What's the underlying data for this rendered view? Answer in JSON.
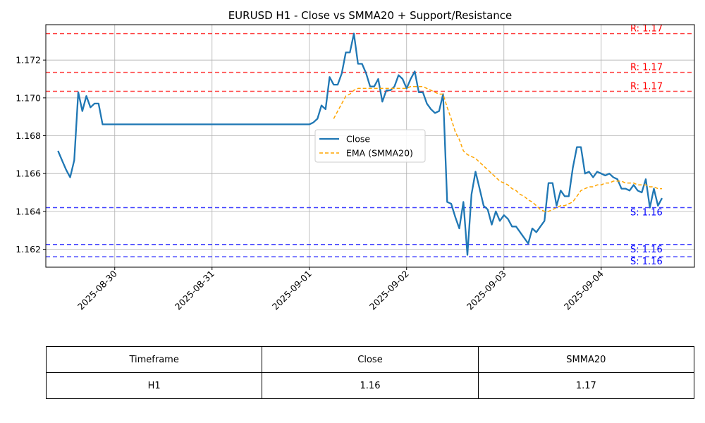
{
  "chart_data": {
    "type": "line",
    "title": "EURUSD H1 - Close vs SMMA20 + Support/Resistance",
    "xlabel": "",
    "ylabel": "",
    "ylim": [
      1.16105,
      1.17387
    ],
    "xlim": [
      "2025-08-29 07:00",
      "2025-09-04 23:00"
    ],
    "grid": true,
    "legend_position": "center",
    "y_ticks": [
      1.162,
      1.164,
      1.166,
      1.168,
      1.17,
      1.172
    ],
    "y_tick_labels": [
      "1.162",
      "1.164",
      "1.166",
      "1.168",
      "1.170",
      "1.172"
    ],
    "x_ticks": [
      "2025-08-30",
      "2025-08-31",
      "2025-09-01",
      "2025-09-02",
      "2025-09-03",
      "2025-09-04"
    ],
    "series": [
      {
        "name": "Close",
        "color": "#1f77b4",
        "style": "solid",
        "points": [
          [
            "2025-08-29 10:00",
            1.1672
          ],
          [
            "2025-08-29 11:00",
            1.1667
          ],
          [
            "2025-08-29 12:00",
            1.1662
          ],
          [
            "2025-08-29 13:00",
            1.1658
          ],
          [
            "2025-08-29 14:00",
            1.1667
          ],
          [
            "2025-08-29 15:00",
            1.1703
          ],
          [
            "2025-08-29 16:00",
            1.1693
          ],
          [
            "2025-08-29 17:00",
            1.1701
          ],
          [
            "2025-08-29 18:00",
            1.1695
          ],
          [
            "2025-08-29 19:00",
            1.1697
          ],
          [
            "2025-08-29 20:00",
            1.1697
          ],
          [
            "2025-08-29 21:00",
            1.1686
          ],
          [
            "2025-09-01 00:00",
            1.1686
          ],
          [
            "2025-09-01 01:00",
            1.1687
          ],
          [
            "2025-09-01 02:00",
            1.1689
          ],
          [
            "2025-09-01 03:00",
            1.1696
          ],
          [
            "2025-09-01 04:00",
            1.1694
          ],
          [
            "2025-09-01 05:00",
            1.1711
          ],
          [
            "2025-09-01 06:00",
            1.1707
          ],
          [
            "2025-09-01 07:00",
            1.1707
          ],
          [
            "2025-09-01 08:00",
            1.1713
          ],
          [
            "2025-09-01 09:00",
            1.1724
          ],
          [
            "2025-09-01 10:00",
            1.1724
          ],
          [
            "2025-09-01 11:00",
            1.1734
          ],
          [
            "2025-09-01 12:00",
            1.1718
          ],
          [
            "2025-09-01 13:00",
            1.1718
          ],
          [
            "2025-09-01 14:00",
            1.1713
          ],
          [
            "2025-09-01 15:00",
            1.1706
          ],
          [
            "2025-09-01 16:00",
            1.1706
          ],
          [
            "2025-09-01 17:00",
            1.171
          ],
          [
            "2025-09-01 18:00",
            1.1698
          ],
          [
            "2025-09-01 19:00",
            1.1704
          ],
          [
            "2025-09-01 20:00",
            1.1704
          ],
          [
            "2025-09-01 21:00",
            1.1706
          ],
          [
            "2025-09-01 22:00",
            1.1712
          ],
          [
            "2025-09-01 23:00",
            1.171
          ],
          [
            "2025-09-02 00:00",
            1.1705
          ],
          [
            "2025-09-02 01:00",
            1.171
          ],
          [
            "2025-09-02 02:00",
            1.1714
          ],
          [
            "2025-09-02 03:00",
            1.1703
          ],
          [
            "2025-09-02 04:00",
            1.1703
          ],
          [
            "2025-09-02 05:00",
            1.1697
          ],
          [
            "2025-09-02 06:00",
            1.1694
          ],
          [
            "2025-09-02 07:00",
            1.1692
          ],
          [
            "2025-09-02 08:00",
            1.1693
          ],
          [
            "2025-09-02 09:00",
            1.1702
          ],
          [
            "2025-09-02 10:00",
            1.1645
          ],
          [
            "2025-09-02 11:00",
            1.1644
          ],
          [
            "2025-09-02 12:00",
            1.1637
          ],
          [
            "2025-09-02 13:00",
            1.1631
          ],
          [
            "2025-09-02 14:00",
            1.1645
          ],
          [
            "2025-09-02 15:00",
            1.1617
          ],
          [
            "2025-09-02 16:00",
            1.1649
          ],
          [
            "2025-09-02 17:00",
            1.1661
          ],
          [
            "2025-09-02 18:00",
            1.1652
          ],
          [
            "2025-09-02 19:00",
            1.1643
          ],
          [
            "2025-09-02 20:00",
            1.1641
          ],
          [
            "2025-09-02 21:00",
            1.1633
          ],
          [
            "2025-09-02 22:00",
            1.164
          ],
          [
            "2025-09-02 23:00",
            1.1635
          ],
          [
            "2025-09-03 00:00",
            1.1638
          ],
          [
            "2025-09-03 01:00",
            1.1636
          ],
          [
            "2025-09-03 02:00",
            1.1632
          ],
          [
            "2025-09-03 03:00",
            1.1632
          ],
          [
            "2025-09-03 04:00",
            1.1629
          ],
          [
            "2025-09-03 05:00",
            1.1626
          ],
          [
            "2025-09-03 06:00",
            1.1623
          ],
          [
            "2025-09-03 07:00",
            1.1631
          ],
          [
            "2025-09-03 08:00",
            1.1629
          ],
          [
            "2025-09-03 09:00",
            1.1632
          ],
          [
            "2025-09-03 10:00",
            1.1635
          ],
          [
            "2025-09-03 11:00",
            1.1655
          ],
          [
            "2025-09-03 12:00",
            1.1655
          ],
          [
            "2025-09-03 13:00",
            1.1643
          ],
          [
            "2025-09-03 14:00",
            1.1651
          ],
          [
            "2025-09-03 15:00",
            1.1648
          ],
          [
            "2025-09-03 16:00",
            1.1648
          ],
          [
            "2025-09-03 17:00",
            1.1663
          ],
          [
            "2025-09-03 18:00",
            1.1674
          ],
          [
            "2025-09-03 19:00",
            1.1674
          ],
          [
            "2025-09-03 20:00",
            1.166
          ],
          [
            "2025-09-03 21:00",
            1.1661
          ],
          [
            "2025-09-03 22:00",
            1.1658
          ],
          [
            "2025-09-03 23:00",
            1.1661
          ],
          [
            "2025-09-04 00:00",
            1.166
          ],
          [
            "2025-09-04 01:00",
            1.1659
          ],
          [
            "2025-09-04 02:00",
            1.166
          ],
          [
            "2025-09-04 03:00",
            1.1658
          ],
          [
            "2025-09-04 04:00",
            1.1657
          ],
          [
            "2025-09-04 05:00",
            1.1652
          ],
          [
            "2025-09-04 06:00",
            1.1652
          ],
          [
            "2025-09-04 07:00",
            1.1651
          ],
          [
            "2025-09-04 08:00",
            1.1654
          ],
          [
            "2025-09-04 09:00",
            1.1651
          ],
          [
            "2025-09-04 10:00",
            1.165
          ],
          [
            "2025-09-04 11:00",
            1.1657
          ],
          [
            "2025-09-04 12:00",
            1.1642
          ],
          [
            "2025-09-04 13:00",
            1.1652
          ],
          [
            "2025-09-04 14:00",
            1.1643
          ],
          [
            "2025-09-04 15:00",
            1.1647
          ]
        ]
      },
      {
        "name": "EMA (SMMA20)",
        "color": "#ffa500",
        "style": "dashed",
        "points": [
          [
            "2025-09-01 06:00",
            1.1689
          ],
          [
            "2025-09-01 07:00",
            1.1693
          ],
          [
            "2025-09-01 08:00",
            1.1697
          ],
          [
            "2025-09-01 09:00",
            1.1701
          ],
          [
            "2025-09-01 10:00",
            1.1702
          ],
          [
            "2025-09-01 11:00",
            1.1704
          ],
          [
            "2025-09-01 12:00",
            1.1705
          ],
          [
            "2025-09-01 13:00",
            1.1705
          ],
          [
            "2025-09-01 14:00",
            1.1705
          ],
          [
            "2025-09-01 15:00",
            1.1705
          ],
          [
            "2025-09-01 16:00",
            1.1705
          ],
          [
            "2025-09-01 17:00",
            1.1705
          ],
          [
            "2025-09-01 18:00",
            1.1705
          ],
          [
            "2025-09-01 19:00",
            1.1705
          ],
          [
            "2025-09-01 20:00",
            1.1705
          ],
          [
            "2025-09-01 21:00",
            1.1705
          ],
          [
            "2025-09-01 22:00",
            1.1705
          ],
          [
            "2025-09-01 23:00",
            1.1705
          ],
          [
            "2025-09-02 00:00",
            1.1705
          ],
          [
            "2025-09-02 01:00",
            1.1706
          ],
          [
            "2025-09-02 02:00",
            1.1706
          ],
          [
            "2025-09-02 03:00",
            1.1706
          ],
          [
            "2025-09-02 04:00",
            1.1706
          ],
          [
            "2025-09-02 05:00",
            1.1705
          ],
          [
            "2025-09-02 06:00",
            1.1704
          ],
          [
            "2025-09-02 07:00",
            1.1703
          ],
          [
            "2025-09-02 08:00",
            1.1702
          ],
          [
            "2025-09-02 09:00",
            1.1702
          ],
          [
            "2025-09-02 10:00",
            1.1695
          ],
          [
            "2025-09-02 11:00",
            1.1689
          ],
          [
            "2025-09-02 12:00",
            1.1682
          ],
          [
            "2025-09-02 13:00",
            1.1678
          ],
          [
            "2025-09-02 14:00",
            1.1672
          ],
          [
            "2025-09-02 15:00",
            1.167
          ],
          [
            "2025-09-02 16:00",
            1.1669
          ],
          [
            "2025-09-02 17:00",
            1.1668
          ],
          [
            "2025-09-02 18:00",
            1.1666
          ],
          [
            "2025-09-02 19:00",
            1.1664
          ],
          [
            "2025-09-02 20:00",
            1.1662
          ],
          [
            "2025-09-02 21:00",
            1.166
          ],
          [
            "2025-09-02 22:00",
            1.1658
          ],
          [
            "2025-09-02 23:00",
            1.1656
          ],
          [
            "2025-09-03 00:00",
            1.1655
          ],
          [
            "2025-09-03 01:00",
            1.1654
          ],
          [
            "2025-09-03 02:00",
            1.1652
          ],
          [
            "2025-09-03 03:00",
            1.1651
          ],
          [
            "2025-09-03 04:00",
            1.1649
          ],
          [
            "2025-09-03 05:00",
            1.1648
          ],
          [
            "2025-09-03 06:00",
            1.1646
          ],
          [
            "2025-09-03 07:00",
            1.1645
          ],
          [
            "2025-09-03 08:00",
            1.1643
          ],
          [
            "2025-09-03 09:00",
            1.1641
          ],
          [
            "2025-09-03 10:00",
            1.164
          ],
          [
            "2025-09-03 11:00",
            1.164
          ],
          [
            "2025-09-03 12:00",
            1.1641
          ],
          [
            "2025-09-03 13:00",
            1.1642
          ],
          [
            "2025-09-03 14:00",
            1.1643
          ],
          [
            "2025-09-03 15:00",
            1.1643
          ],
          [
            "2025-09-03 16:00",
            1.1644
          ],
          [
            "2025-09-03 17:00",
            1.1645
          ],
          [
            "2025-09-03 18:00",
            1.1648
          ],
          [
            "2025-09-03 19:00",
            1.1651
          ],
          [
            "2025-09-03 20:00",
            1.1652
          ],
          [
            "2025-09-03 21:00",
            1.1653
          ],
          [
            "2025-09-03 22:00",
            1.1653
          ],
          [
            "2025-09-03 23:00",
            1.1654
          ],
          [
            "2025-09-04 00:00",
            1.1654
          ],
          [
            "2025-09-04 01:00",
            1.1655
          ],
          [
            "2025-09-04 02:00",
            1.1655
          ],
          [
            "2025-09-04 03:00",
            1.1656
          ],
          [
            "2025-09-04 04:00",
            1.1656
          ],
          [
            "2025-09-04 05:00",
            1.1656
          ],
          [
            "2025-09-04 06:00",
            1.1655
          ],
          [
            "2025-09-04 07:00",
            1.1655
          ],
          [
            "2025-09-04 08:00",
            1.1655
          ],
          [
            "2025-09-04 09:00",
            1.1654
          ],
          [
            "2025-09-04 10:00",
            1.1654
          ],
          [
            "2025-09-04 11:00",
            1.1654
          ],
          [
            "2025-09-04 12:00",
            1.1653
          ],
          [
            "2025-09-04 13:00",
            1.1653
          ],
          [
            "2025-09-04 14:00",
            1.1652
          ],
          [
            "2025-09-04 15:00",
            1.1652
          ]
        ]
      }
    ],
    "hlines": [
      {
        "kind": "resistance",
        "label": "R: 1.17",
        "value": 1.1734,
        "color": "#ff0000"
      },
      {
        "kind": "resistance",
        "label": "R: 1.17",
        "value": 1.17135,
        "color": "#ff0000"
      },
      {
        "kind": "resistance",
        "label": "R: 1.17",
        "value": 1.17035,
        "color": "#ff0000"
      },
      {
        "kind": "support",
        "label": "S: 1.16",
        "value": 1.1642,
        "color": "#0000ff"
      },
      {
        "kind": "support",
        "label": "S: 1.16",
        "value": 1.16225,
        "color": "#0000ff"
      },
      {
        "kind": "support",
        "label": "S: 1.16",
        "value": 1.1616,
        "color": "#0000ff"
      }
    ]
  },
  "table": {
    "headers": [
      "Timeframe",
      "Close",
      "SMMA20"
    ],
    "rows": [
      [
        "H1",
        "1.16",
        "1.17"
      ]
    ]
  }
}
